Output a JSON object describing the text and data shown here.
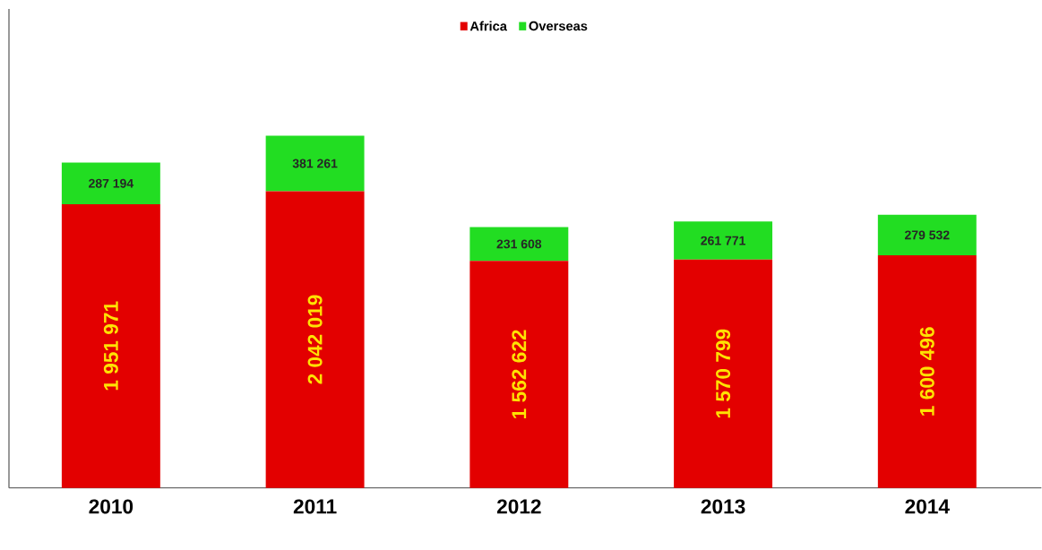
{
  "chart_data": {
    "type": "bar",
    "stacked": true,
    "categories": [
      "2010",
      "2011",
      "2012",
      "2013",
      "2014"
    ],
    "tick_labels": "x",
    "legend": "top",
    "series": [
      {
        "name": "Africa",
        "color": "#e30000",
        "values": [
          1951971,
          2042019,
          1562622,
          1570799,
          1600496
        ],
        "value_labels": [
          "1 951 971",
          "2 042 019",
          "1 562 622",
          "1 570 799",
          "1 600 496"
        ]
      },
      {
        "name": "Overseas",
        "color": "#22dd22",
        "values": [
          287194,
          381261,
          231608,
          261771,
          279532
        ],
        "value_labels": [
          "287 194",
          "381 261",
          "231 608",
          "261 771",
          "279 532"
        ]
      }
    ]
  }
}
